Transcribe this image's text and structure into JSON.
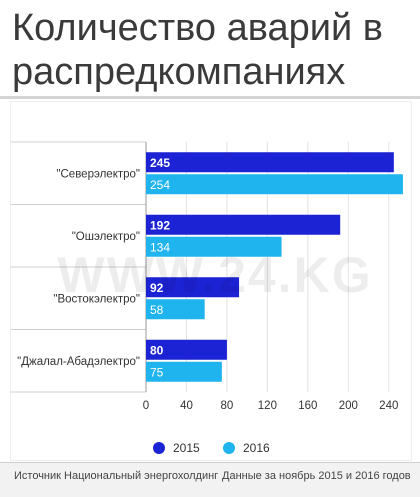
{
  "header": {
    "title_line1": "Количество аварий в",
    "title_line2": "распредкомпаниях"
  },
  "watermark": "WWW.24.KG",
  "footer": {
    "source": "Источник Национальный энергохолдинг",
    "note": "Данные за ноябрь 2015 и 2016 годов"
  },
  "chart_data": {
    "type": "bar",
    "orientation": "horizontal",
    "title": "Количество аварий в распредкомпаниях",
    "categories": [
      "\"Северэлектро\"",
      "\"Ошэлектро\"",
      "\"Востокэлектро\"",
      "\"Джалал-Абадэлектро\""
    ],
    "series": [
      {
        "name": "2015",
        "values": [
          245,
          192,
          92,
          80
        ],
        "color": "#1c23d4"
      },
      {
        "name": "2016",
        "values": [
          254,
          134,
          58,
          75
        ],
        "color": "#1fb4ee"
      }
    ],
    "xlim": [
      0,
      260
    ],
    "xticks": [
      0,
      40,
      80,
      120,
      160,
      200,
      240
    ],
    "grid": true,
    "legend": "bottom"
  }
}
